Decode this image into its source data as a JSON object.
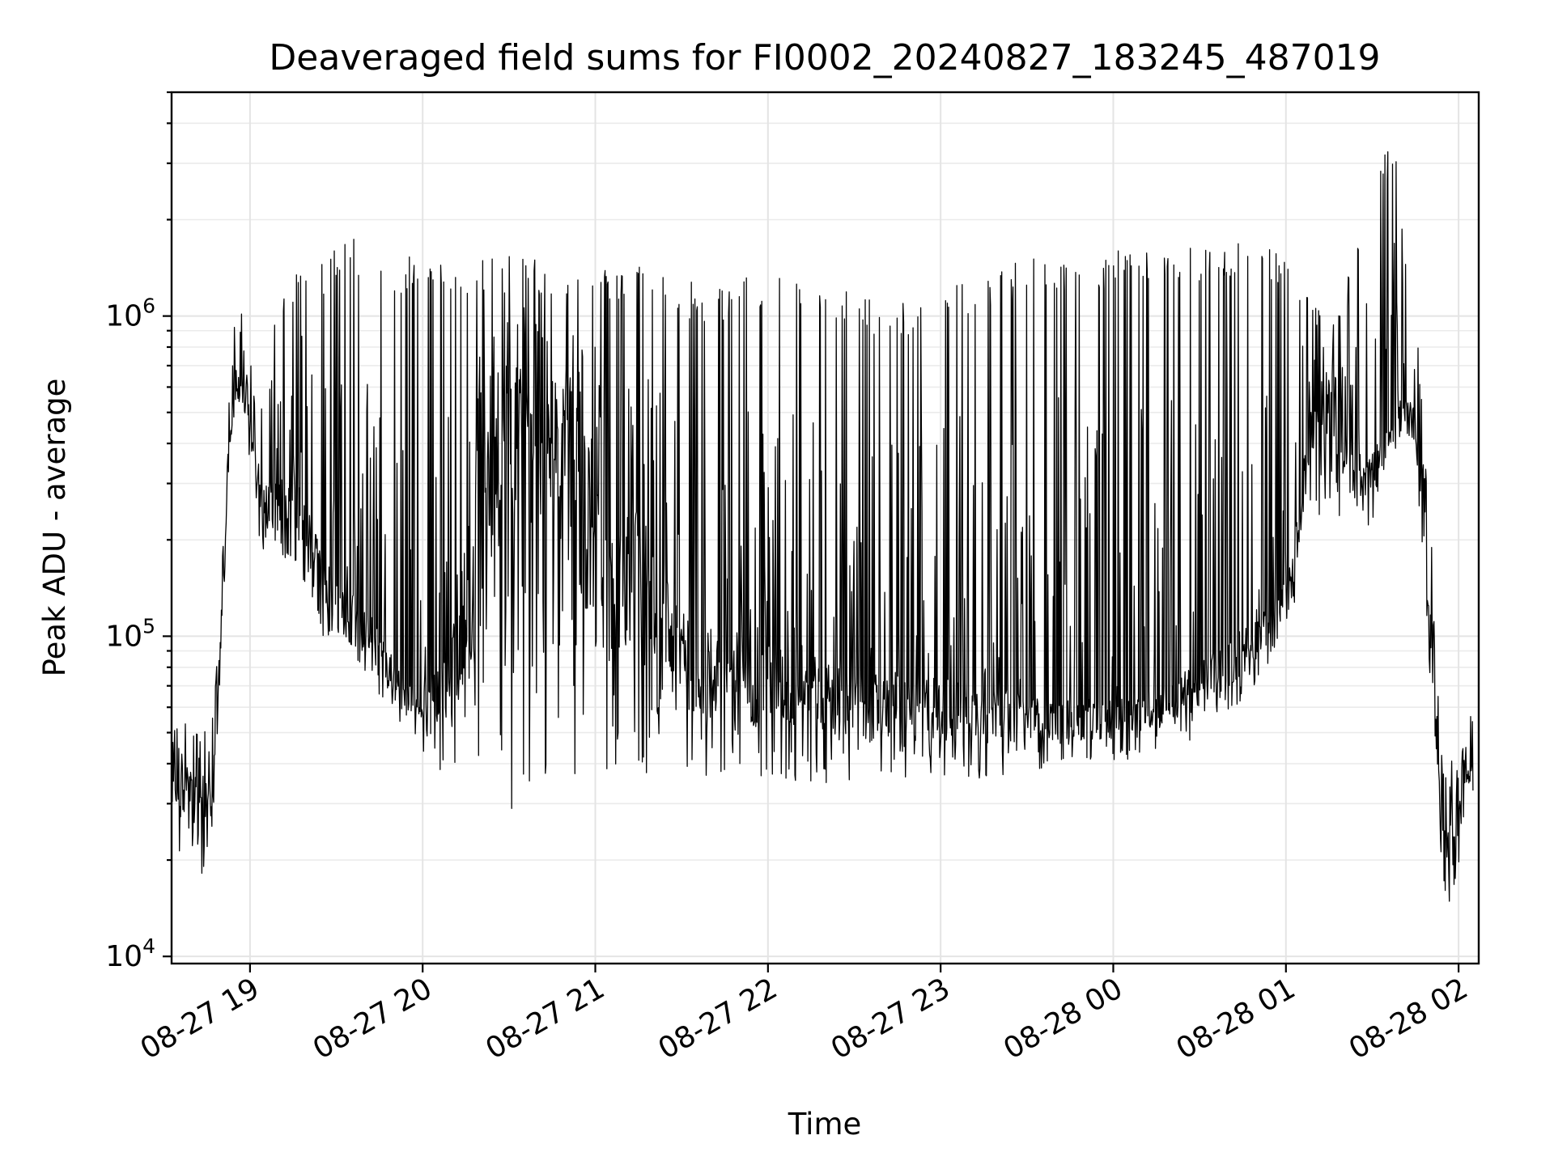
{
  "chart_data": {
    "type": "line",
    "title": "Deaveraged field sums for FI0002_20240827_183245_487019",
    "xlabel": "Time",
    "ylabel": "Peak ADU - average",
    "yscale": "log",
    "grid": true,
    "xlim": [
      "2024-08-27 18:32:45",
      "2024-08-28 02:07:00"
    ],
    "ylim": [
      9500,
      5000000
    ],
    "x_ticks": [
      "08-27 19",
      "08-27 20",
      "08-27 21",
      "08-27 22",
      "08-27 23",
      "08-28 00",
      "08-28 01",
      "08-28 02"
    ],
    "y_ticks": [
      {
        "base": "10",
        "exp": "4",
        "value": 10000
      },
      {
        "base": "10",
        "exp": "5",
        "value": 100000
      },
      {
        "base": "10",
        "exp": "6",
        "value": 1000000
      }
    ],
    "series": [
      {
        "color": "#000000",
        "x": [
          "2024-08-27 18:33",
          "2024-08-27 18:38",
          "2024-08-27 18:42",
          "2024-08-27 18:47",
          "2024-08-27 18:50",
          "2024-08-27 18:53",
          "2024-08-27 18:56",
          "2024-08-27 18:59",
          "2024-08-27 19:02",
          "2024-08-27 19:06",
          "2024-08-27 19:10",
          "2024-08-27 19:15",
          "2024-08-27 19:20",
          "2024-08-27 19:25",
          "2024-08-27 19:30",
          "2024-08-27 19:36",
          "2024-08-27 19:42",
          "2024-08-27 19:48",
          "2024-08-27 19:54",
          "2024-08-27 20:00",
          "2024-08-27 20:10",
          "2024-08-27 20:20",
          "2024-08-27 20:30",
          "2024-08-27 20:40",
          "2024-08-27 20:50",
          "2024-08-27 21:00",
          "2024-08-27 21:10",
          "2024-08-27 21:20",
          "2024-08-27 21:30",
          "2024-08-27 21:40",
          "2024-08-27 21:50",
          "2024-08-27 22:00",
          "2024-08-27 22:15",
          "2024-08-27 22:30",
          "2024-08-27 22:45",
          "2024-08-27 23:00",
          "2024-08-27 23:15",
          "2024-08-27 23:30",
          "2024-08-27 23:45",
          "2024-08-28 00:00",
          "2024-08-28 00:15",
          "2024-08-28 00:30",
          "2024-08-28 00:45",
          "2024-08-28 00:55",
          "2024-08-28 01:02",
          "2024-08-28 01:08",
          "2024-08-28 01:14",
          "2024-08-28 01:20",
          "2024-08-28 01:26",
          "2024-08-28 01:32",
          "2024-08-28 01:38",
          "2024-08-28 01:42",
          "2024-08-28 01:45",
          "2024-08-28 01:48",
          "2024-08-28 01:51",
          "2024-08-28 01:55",
          "2024-08-28 02:00",
          "2024-08-28 02:05"
        ],
        "baseline": [
          35000,
          32000,
          30000,
          30000,
          110000,
          400000,
          620000,
          550000,
          300000,
          260000,
          250000,
          260000,
          220000,
          150000,
          130000,
          120000,
          100000,
          80000,
          65000,
          60000,
          70000,
          250000,
          400000,
          350000,
          300000,
          200000,
          150000,
          120000,
          90000,
          80000,
          75000,
          70000,
          65000,
          60000,
          60000,
          60000,
          58000,
          55000,
          55000,
          55000,
          60000,
          70000,
          90000,
          110000,
          150000,
          400000,
          450000,
          500000,
          300000,
          350000,
          450000,
          500000,
          450000,
          250000,
          70000,
          18000,
          30000,
          40000
        ],
        "low": [
          20000,
          20000,
          17000,
          22000,
          90000,
          350000,
          500000,
          400000,
          200000,
          180000,
          150000,
          170000,
          140000,
          100000,
          95000,
          85000,
          70000,
          60000,
          50000,
          42000,
          35000,
          30000,
          28000,
          35000,
          38000,
          33000,
          34000,
          35000,
          36000,
          35000,
          35000,
          36000,
          34000,
          34000,
          35000,
          35000,
          36000,
          38000,
          40000,
          40000,
          44000,
          48000,
          60000,
          85000,
          110000,
          250000,
          200000,
          200000,
          200000,
          250000,
          350000,
          380000,
          350000,
          150000,
          40000,
          13000,
          18000,
          30000
        ],
        "high": [
          50000,
          55000,
          60000,
          60000,
          180000,
          700000,
          1200000,
          850000,
          600000,
          900000,
          1300000,
          1400000,
          1600000,
          1500000,
          1700000,
          1800000,
          1600000,
          1500000,
          1550000,
          1500000,
          1550000,
          1500000,
          1550000,
          1500000,
          1500000,
          1500000,
          1450000,
          1400000,
          1300000,
          1250000,
          1300000,
          1400000,
          1300000,
          1200000,
          1100000,
          1200000,
          1400000,
          1500000,
          1550000,
          1600000,
          1650000,
          1700000,
          1750000,
          1700000,
          1600000,
          1300000,
          1000000,
          1200000,
          2000000,
          3000000,
          3800000,
          1500000,
          1000000,
          500000,
          200000,
          40000,
          50000,
          60000
        ]
      }
    ]
  }
}
